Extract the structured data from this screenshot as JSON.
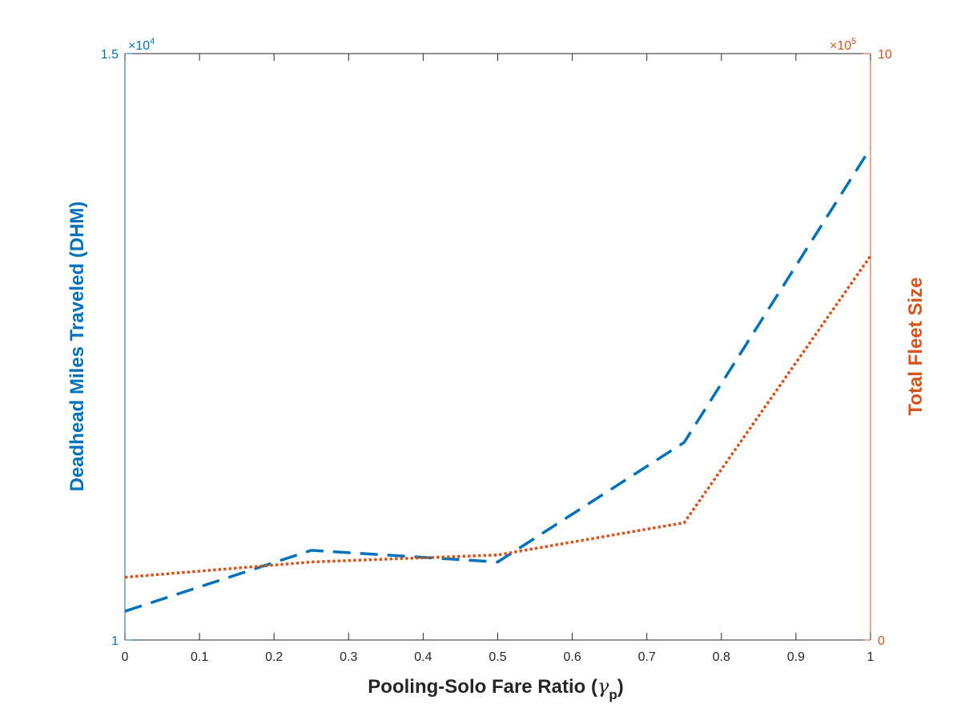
{
  "chart_data": {
    "type": "line",
    "title": "",
    "xlabel_main": "Pooling-Solo Fare Ratio (",
    "xlabel_symbol": "γ",
    "xlabel_subscript": "p",
    "xlabel_close": ")",
    "ylabel_left": "Deadhead Miles Traveled (DHM)",
    "ylabel_right": "Total Fleet Size",
    "xlim": [
      0,
      1
    ],
    "ylim_left": [
      1,
      1.5
    ],
    "ylim_right": [
      0,
      10
    ],
    "left_multiplier": {
      "times": "×10",
      "exp": "4"
    },
    "right_multiplier": {
      "times": "×10",
      "exp": "5"
    },
    "xticks": [
      "0",
      "0.1",
      "0.2",
      "0.3",
      "0.4",
      "0.5",
      "0.6",
      "0.7",
      "0.8",
      "0.9",
      "1"
    ],
    "yticks_left": [
      "1",
      "1.5"
    ],
    "yticks_right": [
      "0",
      "10"
    ],
    "grid": false,
    "series": [
      {
        "axis": "left",
        "color": "#0072BD",
        "style": "dashed",
        "x": [
          0,
          0.25,
          0.5,
          0.75,
          1
        ],
        "y": [
          1.0245,
          1.0765,
          1.0665,
          1.1685,
          1.4195
        ]
      },
      {
        "axis": "right",
        "color": "#D95319",
        "style": "dotted",
        "x": [
          0,
          0.25,
          0.5,
          0.75,
          1
        ],
        "y": [
          1.07,
          1.33,
          1.45,
          2.0,
          6.55
        ]
      }
    ]
  },
  "colors": {
    "left_axis": "#0072BD",
    "right_axis": "#D95319",
    "axis_black": "#262626"
  }
}
